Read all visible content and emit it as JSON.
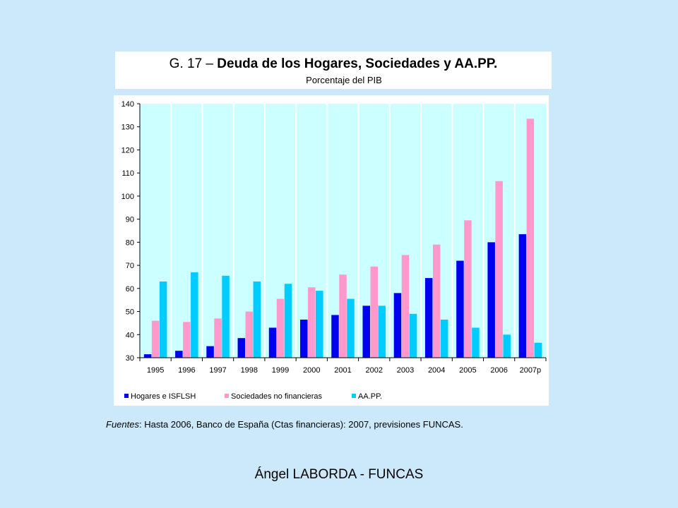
{
  "header": {
    "title_prefix": "G. 17 – ",
    "title_bold": "Deuda de los Hogares, Sociedades y AA.PP.",
    "subtitle": "Porcentaje del PIB"
  },
  "source": {
    "label": "Fuentes",
    "text": ": Hasta 2006, Banco de España (Ctas financieras): 2007, previsiones FUNCAS."
  },
  "footer": {
    "text": "Ángel LABORDA - FUNCAS"
  },
  "colors": {
    "page_background": "#cce9fb",
    "plot_background": "#ccffff",
    "grid": "#ffffff"
  },
  "chart_data": {
    "type": "bar",
    "title": "G. 17 – Deuda de los Hogares, Sociedades y AA.PP.",
    "subtitle": "Porcentaje del PIB",
    "xlabel": "",
    "ylabel": "",
    "ylim": [
      30,
      140
    ],
    "yticks": [
      30,
      40,
      50,
      60,
      70,
      80,
      90,
      100,
      110,
      120,
      130,
      140
    ],
    "grid": "vertical",
    "legend_position": "bottom",
    "categories": [
      "1995",
      "1996",
      "1997",
      "1998",
      "1999",
      "2000",
      "2001",
      "2002",
      "2003",
      "2004",
      "2005",
      "2006",
      "2007p"
    ],
    "series": [
      {
        "name": "Hogares e ISFLSH",
        "color": "#0000ee",
        "values": [
          31.5,
          33,
          35,
          38.5,
          43,
          46.5,
          48.5,
          52.5,
          58,
          64.5,
          72,
          80,
          83.5
        ]
      },
      {
        "name": "Sociedades no financieras",
        "color": "#ff99cc",
        "values": [
          46,
          45.5,
          47,
          50,
          55.5,
          60.5,
          66,
          69.5,
          74.5,
          79,
          89.5,
          106.5,
          133.5
        ]
      },
      {
        "name": "AA.PP.",
        "color": "#00ccff",
        "values": [
          63,
          67,
          65.5,
          63,
          62,
          59,
          55.5,
          52.5,
          49,
          46.5,
          43,
          40,
          36.5
        ]
      }
    ]
  }
}
